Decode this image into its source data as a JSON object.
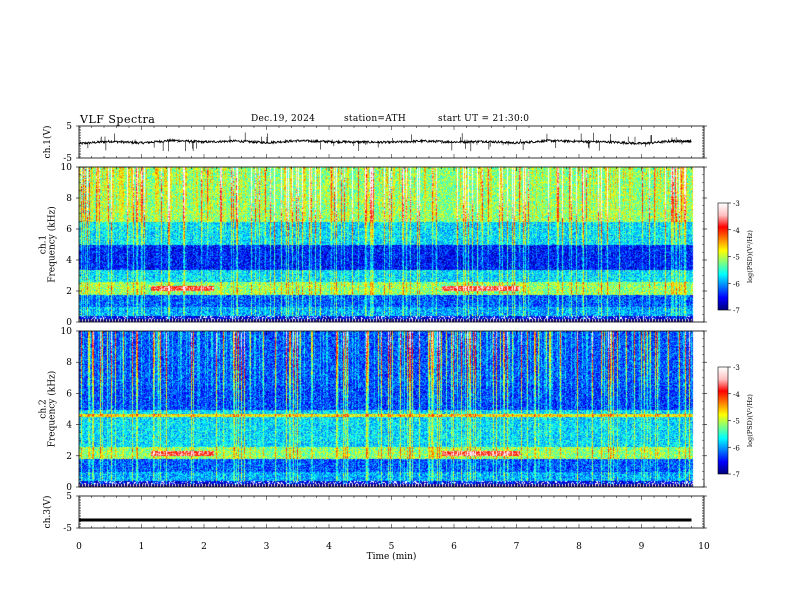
{
  "header": {
    "title": "VLF  Spectra",
    "date": "Dec.19, 2024",
    "station": "station=ATH",
    "start": "start  UT  =   21:30:0"
  },
  "colors": {
    "spectrum_scale": [
      "#000080",
      "#0000ff",
      "#0080ff",
      "#00ffff",
      "#80ff80",
      "#ffff00",
      "#ff8000",
      "#ff0000",
      "#ffc0c0",
      "#ffffff"
    ]
  },
  "chart_data": [
    {
      "type": "line",
      "name": "ch1-waveform",
      "ylabel": "ch.1(V)",
      "ylim": [
        -5,
        5
      ],
      "y_ticks": [
        "5",
        "-5"
      ],
      "xlim": [
        0,
        10
      ],
      "x": [
        0,
        0.5,
        1,
        1.5,
        2,
        2.5,
        3,
        3.5,
        4,
        4.5,
        5,
        5.5,
        6,
        6.5,
        7,
        7.5,
        8,
        8.5,
        9,
        9.5,
        9.8
      ],
      "y": [
        -0.5,
        0.2,
        -0.3,
        0.5,
        0,
        0.3,
        -0.2,
        0.4,
        0.1,
        0,
        -0.1,
        0.3,
        0,
        0.2,
        -0.3,
        0.4,
        0.2,
        0,
        -0.5,
        0.3,
        0.2
      ]
    },
    {
      "type": "heatmap",
      "name": "ch1-spectrogram",
      "ylabel": "ch.1\nFrequency  (kHz)",
      "ylim": [
        0,
        10
      ],
      "y_ticks": [
        "0",
        "2",
        "4",
        "6",
        "8",
        "10"
      ],
      "xlim": [
        0,
        10
      ],
      "colorbar": {
        "label": "log(PSD)(V²/Hz)",
        "range": [
          -7,
          -3
        ],
        "ticks": [
          "-3",
          "-4",
          "-5",
          "-6",
          "-7"
        ]
      }
    },
    {
      "type": "heatmap",
      "name": "ch2-spectrogram",
      "ylabel": "ch.2\nFrequency  (kHz)",
      "ylim": [
        0,
        10
      ],
      "y_ticks": [
        "0",
        "2",
        "4",
        "6",
        "8",
        "10"
      ],
      "xlim": [
        0,
        10
      ],
      "colorbar": {
        "label": "log(PSD)(V²/Hz)",
        "range": [
          -7,
          -3
        ],
        "ticks": [
          "-3",
          "-4",
          "-5",
          "-6",
          "-7"
        ]
      }
    },
    {
      "type": "line",
      "name": "ch3-waveform",
      "ylabel": "ch.3(V)",
      "ylim": [
        -5,
        5
      ],
      "y_ticks": [
        "5",
        "-5"
      ],
      "xlim": [
        0,
        10
      ],
      "x": [
        0,
        9.8
      ],
      "y": [
        -2.5,
        -2.5
      ],
      "xlabel": "Time  (min)",
      "x_ticks": [
        "0",
        "1",
        "2",
        "3",
        "4",
        "5",
        "6",
        "7",
        "8",
        "9",
        "10"
      ]
    }
  ]
}
